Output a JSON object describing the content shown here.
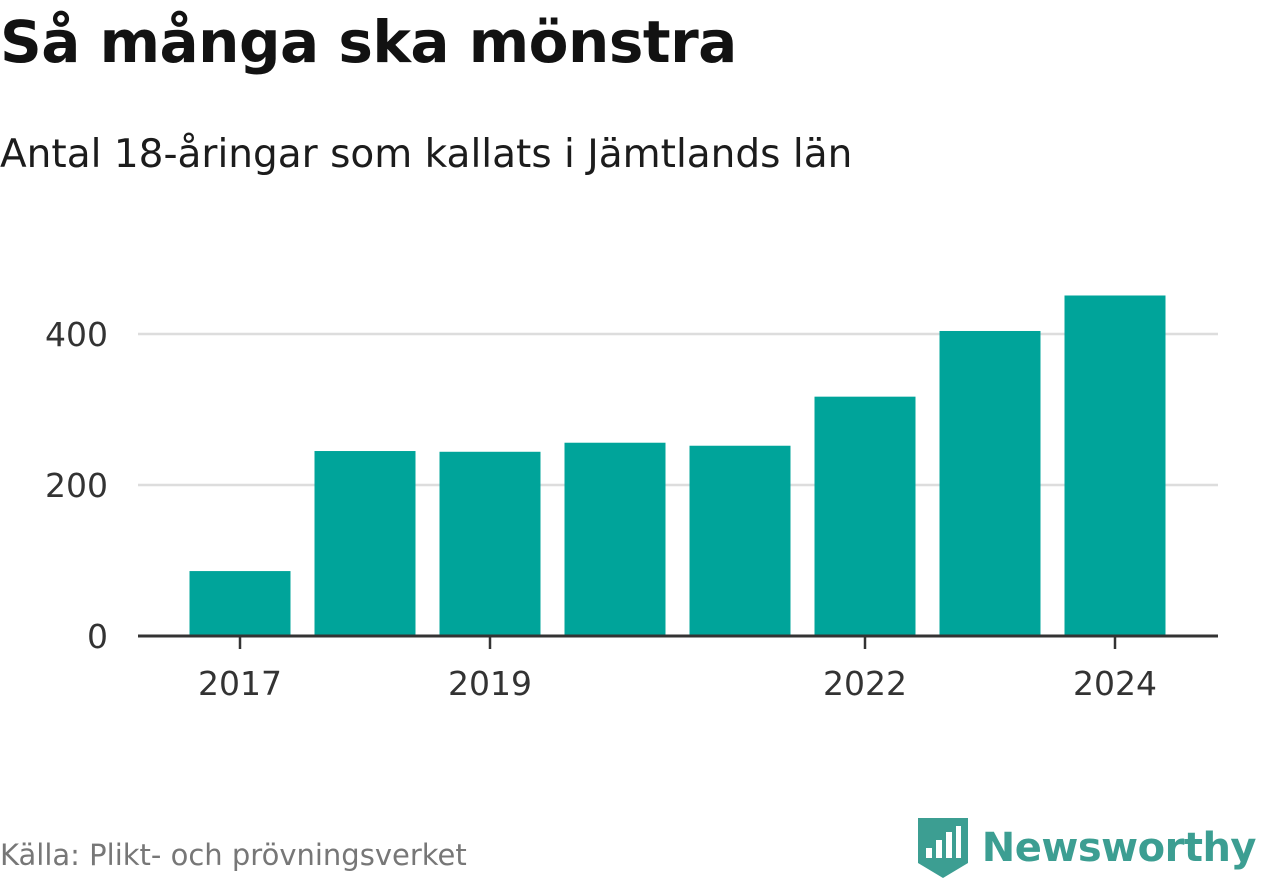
{
  "title": "Så många ska mönstra",
  "subtitle": "Antal 18-åringar som kallats i Jämtlands län",
  "source": "Källa: Plikt- och prövningsverket",
  "brand": {
    "name": "Newsworthy",
    "icon": "newsworthy-logo-icon",
    "color": "#3c9e92"
  },
  "colors": {
    "bar": "#00a49a",
    "grid": "#dddddd",
    "axis": "#333333",
    "tick_label": "#333333"
  },
  "chart_data": {
    "type": "bar",
    "title": "Så många ska mönstra",
    "subtitle": "Antal 18-åringar som kallats i Jämtlands län",
    "xlabel": "",
    "ylabel": "",
    "categories": [
      "2017",
      "2018",
      "2019",
      "2020",
      "2021",
      "2022",
      "2023",
      "2024"
    ],
    "values": [
      86,
      245,
      244,
      256,
      252,
      317,
      404,
      451
    ],
    "x_tick_labels": [
      "2017",
      "2019",
      "2022",
      "2024"
    ],
    "y_ticks": [
      0,
      200,
      400
    ],
    "ylim": [
      0,
      480
    ],
    "grid": true,
    "legend": "none"
  }
}
